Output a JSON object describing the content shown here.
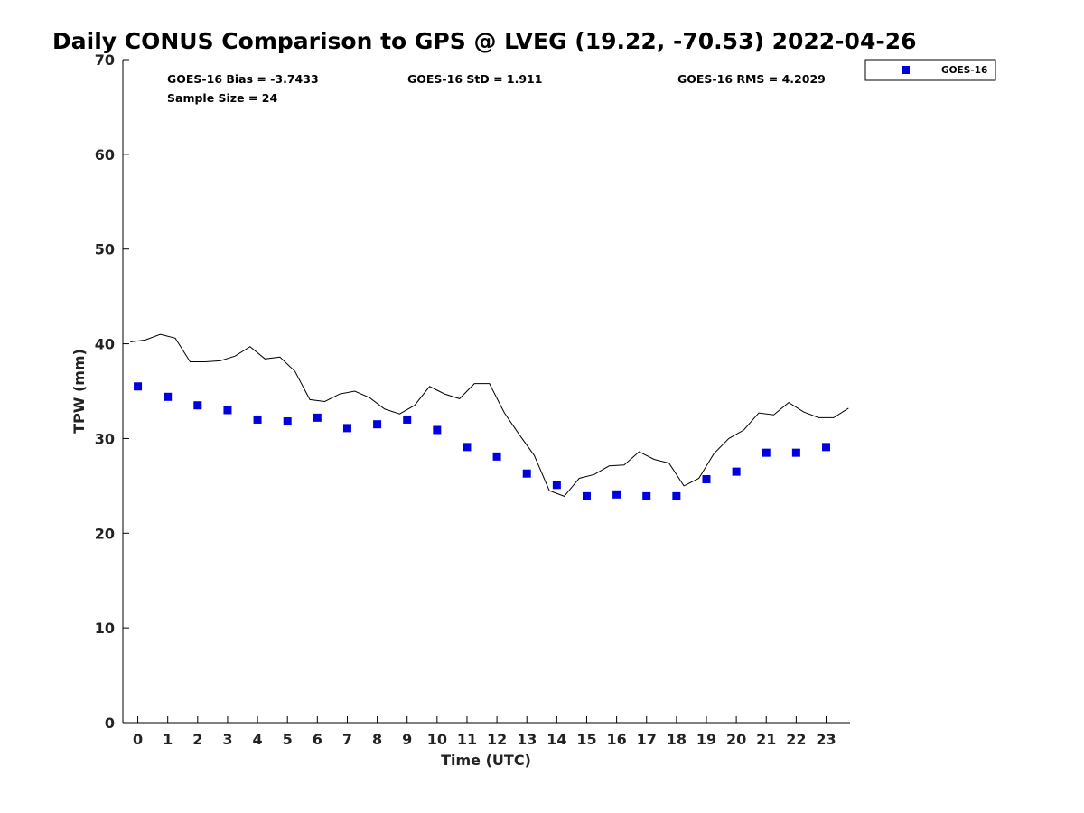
{
  "chart_data": {
    "type": "scatter",
    "title": "Daily CONUS Comparison to GPS @ LVEG (19.22, -70.53) 2022-04-26",
    "xlabel": "Time (UTC)",
    "ylabel": "TPW (mm)",
    "xlim": [
      -0.5,
      23.8
    ],
    "ylim": [
      0,
      70
    ],
    "x_ticks": [
      "0",
      "1",
      "2",
      "3",
      "4",
      "5",
      "6",
      "7",
      "8",
      "9",
      "10",
      "11",
      "12",
      "13",
      "14",
      "15",
      "16",
      "17",
      "18",
      "19",
      "20",
      "21",
      "22",
      "23"
    ],
    "y_ticks": [
      "0",
      "10",
      "20",
      "30",
      "40",
      "50",
      "60",
      "70"
    ],
    "grid": false,
    "legend_position": "outside top-right",
    "stats": {
      "bias": "GOES-16 Bias = -3.7433",
      "std": "GOES-16 StD = 1.911",
      "rms": "GOES-16 RMS = 4.2029",
      "sample": "Sample Size = 24"
    },
    "series": [
      {
        "name": "GOES-16",
        "kind": "markers",
        "color": "#0000dd",
        "x": [
          0,
          1,
          2,
          3,
          4,
          5,
          6,
          7,
          8,
          9,
          10,
          11,
          12,
          13,
          14,
          15,
          16,
          17,
          18,
          19,
          20,
          21,
          22,
          23
        ],
        "y": [
          35.5,
          34.4,
          33.5,
          33.0,
          32.0,
          31.8,
          32.2,
          31.1,
          31.5,
          32.0,
          30.9,
          29.1,
          28.1,
          26.3,
          25.1,
          23.9,
          24.1,
          23.9,
          23.9,
          25.7,
          26.5,
          28.5,
          28.5,
          29.1
        ]
      },
      {
        "kind": "line",
        "color": "#000000",
        "x": [
          -0.25,
          0.25,
          0.75,
          1.25,
          1.75,
          2.25,
          2.75,
          3.25,
          3.75,
          4.25,
          4.75,
          5.25,
          5.75,
          6.25,
          6.75,
          7.25,
          7.75,
          8.25,
          8.75,
          9.25,
          9.75,
          10.25,
          10.75,
          11.25,
          11.75,
          12.25,
          12.75,
          13.25,
          13.75,
          14.25,
          14.75,
          15.25,
          15.75,
          16.25,
          16.75,
          17.25,
          17.75,
          18.25,
          18.75,
          19.25,
          19.75,
          20.25,
          20.75,
          21.25,
          21.75,
          22.25,
          22.75,
          23.25,
          23.75
        ],
        "y": [
          40.2,
          40.4,
          41.0,
          40.6,
          38.1,
          38.1,
          38.2,
          38.7,
          39.7,
          38.4,
          38.6,
          37.1,
          34.1,
          33.9,
          34.7,
          35.0,
          34.3,
          33.1,
          32.6,
          33.5,
          35.5,
          34.7,
          34.2,
          35.8,
          35.8,
          32.7,
          30.4,
          28.2,
          24.5,
          23.9,
          25.8,
          26.2,
          27.1,
          27.2,
          28.6,
          27.8,
          27.4,
          25.0,
          25.8,
          28.4,
          30.0,
          30.9,
          32.7,
          32.5,
          33.8,
          32.8,
          32.2,
          32.2,
          33.2
        ]
      }
    ]
  }
}
